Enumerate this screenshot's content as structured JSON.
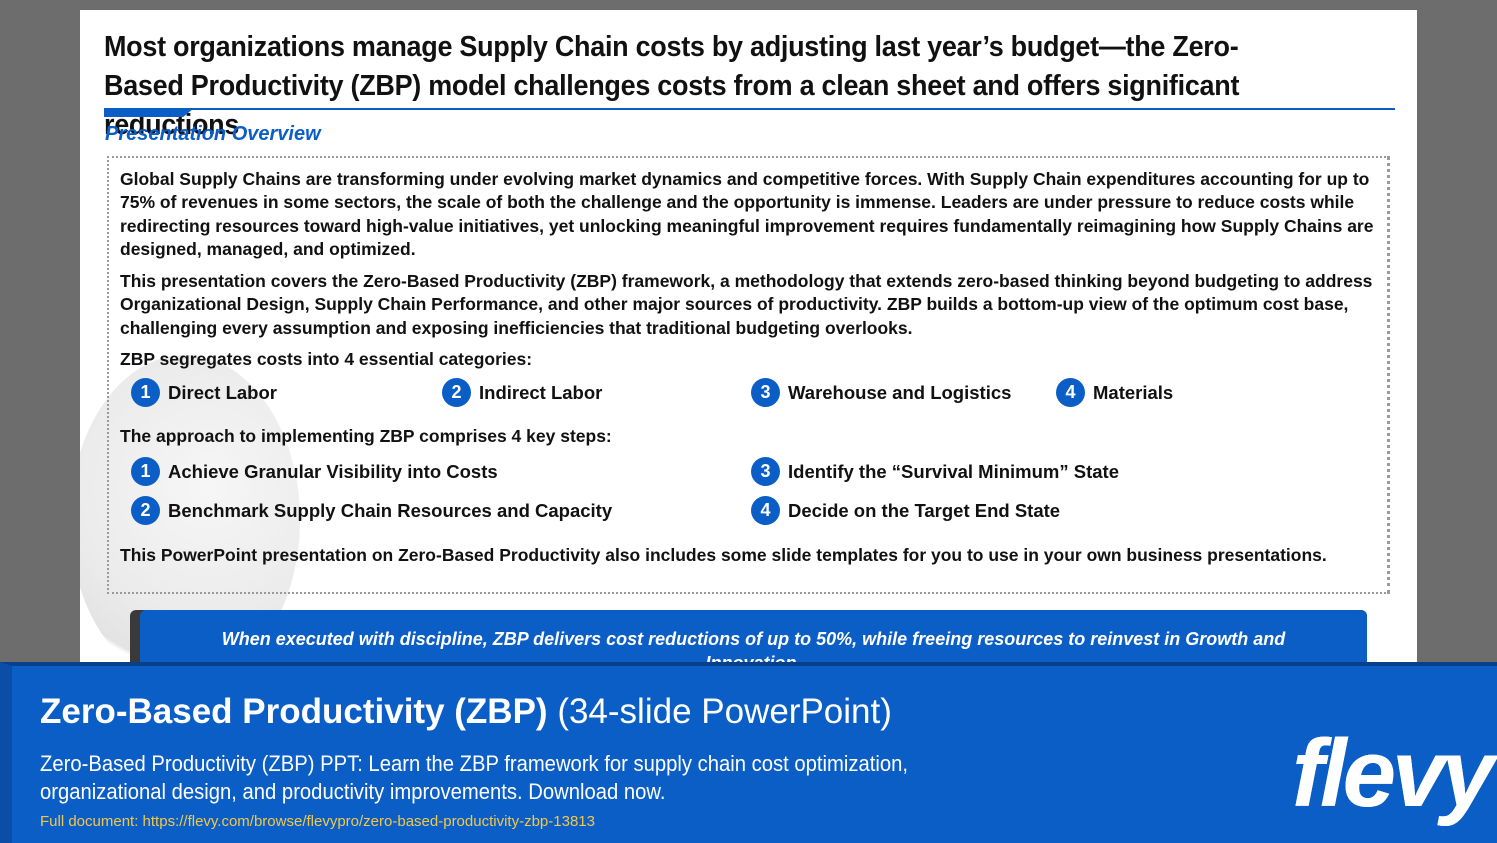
{
  "slide": {
    "title": "Most organizations manage Supply Chain costs by adjusting last year’s budget—the Zero-Based Productivity (ZBP) model challenges costs from a clean sheet and offers significant reductions",
    "section_heading": "Presentation Overview",
    "paragraph_1": "Global Supply Chains are transforming under evolving market dynamics and competitive forces. With Supply Chain expenditures accounting for up to 75% of revenues in some sectors, the scale of both the challenge and the opportunity is immense. Leaders are under pressure to reduce costs while redirecting resources toward high-value initiatives, yet unlocking meaningful improvement requires fundamentally reimagining how Supply Chains are designed, managed, and optimized.",
    "paragraph_2": "This presentation covers the Zero-Based Productivity (ZBP) framework, a methodology that extends zero-based thinking beyond budgeting to address Organizational Design, Supply Chain Performance, and other major sources of productivity. ZBP builds a bottom-up view of the optimum cost base, challenging every assumption and exposing inefficiencies that traditional budgeting overlooks.",
    "categories_intro": "ZBP segregates costs into 4 essential categories:",
    "categories": [
      {
        "number": "1",
        "label": "Direct Labor"
      },
      {
        "number": "2",
        "label": "Indirect Labor"
      },
      {
        "number": "3",
        "label": "Warehouse and Logistics"
      },
      {
        "number": "4",
        "label": "Materials"
      }
    ],
    "steps_intro": "The approach to implementing ZBP comprises 4 key steps:",
    "steps": [
      {
        "number": "1",
        "label": "Achieve Granular Visibility into Costs"
      },
      {
        "number": "2",
        "label": "Benchmark Supply Chain Resources and Capacity"
      },
      {
        "number": "3",
        "label": "Identify the “Survival Minimum” State"
      },
      {
        "number": "4",
        "label": "Decide on the Target End State"
      }
    ],
    "closing": "This PowerPoint presentation on Zero-Based Productivity also includes some slide templates for you to use in your own business presentations.",
    "callout": "When executed with discipline, ZBP delivers cost reductions of up to 50%, while freeing resources to reinvest in Growth and Innovation."
  },
  "banner": {
    "title_strong": "Zero-Based Productivity (ZBP)",
    "title_light": "(34-slide PowerPoint)",
    "description": "Zero-Based Productivity (ZBP) PPT: Learn the ZBP framework for supply chain cost optimization, organizational design, and productivity improvements. Download now.",
    "link": "Full document: https://flevy.com/browse/flevypro/zero-based-productivity-zbp-13813",
    "logo": "flevy"
  },
  "colors": {
    "accent_blue": "#0b5ec6",
    "link_yellow": "#f2c84b",
    "background_gray": "#6d6d6d"
  }
}
